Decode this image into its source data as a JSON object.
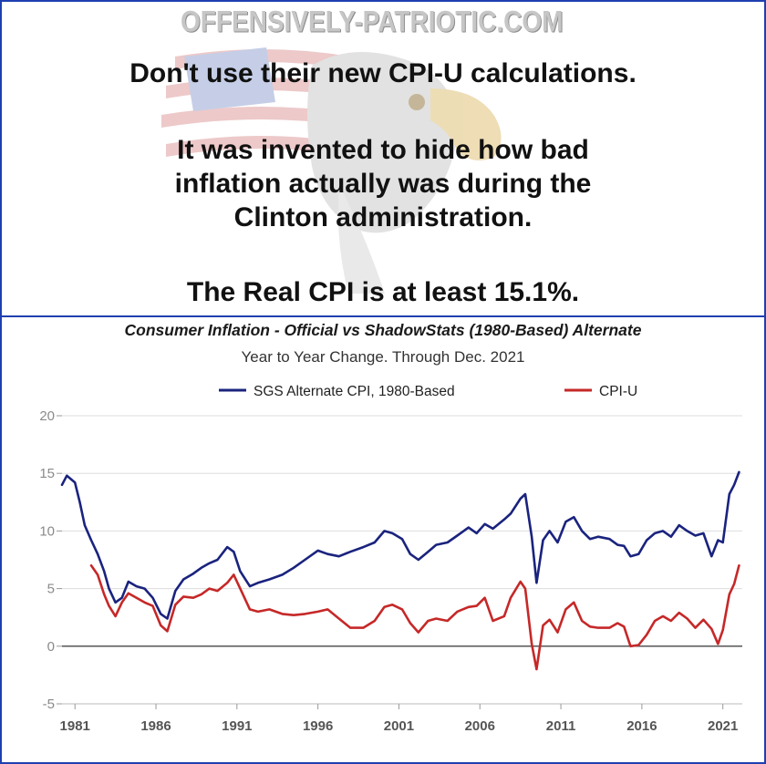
{
  "meme": {
    "watermark": "OFFENSIVELY-PATRIOTIC.COM",
    "caption_line_1": "Don't use their new CPI-U calculations.",
    "caption_line_2": "It was invented to hide how bad",
    "caption_line_3": "inflation actually was during the",
    "caption_line_4": "Clinton administration.",
    "caption_line_5": "The Real CPI is at least 15.1%."
  },
  "colors": {
    "frame": "#1f3fb0",
    "sgs_series": "#1a237e",
    "cpiu_series": "#c62828",
    "zero_line": "#555555",
    "grid": "#dddddd"
  },
  "chart_data": {
    "type": "line",
    "title": "Consumer Inflation - Official vs ShadowStats (1980-Based) Alternate",
    "subtitle": "Year to Year Change. Through Dec. 2021",
    "xlabel": "",
    "ylabel": "",
    "xlim": [
      1980.2,
      2022.2
    ],
    "ylim": [
      -5,
      20
    ],
    "yticks": [
      -5,
      0,
      5,
      10,
      15,
      20
    ],
    "xticks": [
      1981,
      1986,
      1991,
      1996,
      2001,
      2006,
      2011,
      2016,
      2021
    ],
    "grid": "horizontal",
    "legend_position": "top",
    "series": [
      {
        "name": "SGS Alternate CPI, 1980-Based",
        "x": [
          1980.2,
          1980.5,
          1981.0,
          1981.3,
          1981.6,
          1982.0,
          1982.4,
          1982.8,
          1983.1,
          1983.5,
          1983.9,
          1984.3,
          1984.8,
          1985.3,
          1985.8,
          1986.3,
          1986.7,
          1987.2,
          1987.7,
          1988.3,
          1988.8,
          1989.3,
          1989.8,
          1990.4,
          1990.8,
          1991.2,
          1991.8,
          1992.3,
          1993.0,
          1993.8,
          1994.5,
          1995.2,
          1996.0,
          1996.6,
          1997.3,
          1998.0,
          1998.8,
          1999.5,
          2000.1,
          2000.6,
          2001.2,
          2001.7,
          2002.2,
          2002.8,
          2003.3,
          2004.0,
          2004.6,
          2005.3,
          2005.8,
          2006.3,
          2006.8,
          2007.5,
          2007.9,
          2008.5,
          2008.8,
          2009.2,
          2009.5,
          2009.9,
          2010.3,
          2010.8,
          2011.3,
          2011.8,
          2012.3,
          2012.8,
          2013.3,
          2014.0,
          2014.5,
          2014.9,
          2015.3,
          2015.8,
          2016.3,
          2016.8,
          2017.3,
          2017.8,
          2018.3,
          2018.8,
          2019.3,
          2019.8,
          2020.3,
          2020.7,
          2021.0,
          2021.4,
          2021.7,
          2022.0
        ],
        "values": [
          14.0,
          14.8,
          14.2,
          12.5,
          10.5,
          9.2,
          8.0,
          6.5,
          5.0,
          3.8,
          4.2,
          5.6,
          5.2,
          5.0,
          4.2,
          2.8,
          2.4,
          4.8,
          5.8,
          6.3,
          6.8,
          7.2,
          7.5,
          8.6,
          8.2,
          6.5,
          5.2,
          5.5,
          5.8,
          6.2,
          6.8,
          7.5,
          8.3,
          8.0,
          7.8,
          8.2,
          8.6,
          9.0,
          10.0,
          9.8,
          9.3,
          8.0,
          7.5,
          8.2,
          8.8,
          9.0,
          9.6,
          10.3,
          9.8,
          10.6,
          10.2,
          11.0,
          11.5,
          12.8,
          13.2,
          9.5,
          5.5,
          9.2,
          10.0,
          9.0,
          10.8,
          11.2,
          10.0,
          9.3,
          9.5,
          9.3,
          8.8,
          8.7,
          7.8,
          8.0,
          9.2,
          9.8,
          10.0,
          9.5,
          10.5,
          10.0,
          9.6,
          9.8,
          7.8,
          9.2,
          9.0,
          13.2,
          14.0,
          15.1
        ]
      },
      {
        "name": "CPI-U",
        "x": [
          1982.0,
          1982.4,
          1982.8,
          1983.1,
          1983.5,
          1983.9,
          1984.3,
          1984.8,
          1985.3,
          1985.8,
          1986.3,
          1986.7,
          1987.2,
          1987.7,
          1988.3,
          1988.8,
          1989.3,
          1989.8,
          1990.4,
          1990.8,
          1991.2,
          1991.8,
          1992.3,
          1993.0,
          1993.8,
          1994.5,
          1995.2,
          1996.0,
          1996.6,
          1997.3,
          1998.0,
          1998.8,
          1999.5,
          2000.1,
          2000.6,
          2001.2,
          2001.7,
          2002.2,
          2002.8,
          2003.3,
          2004.0,
          2004.6,
          2005.3,
          2005.8,
          2006.3,
          2006.8,
          2007.5,
          2007.9,
          2008.5,
          2008.8,
          2009.2,
          2009.5,
          2009.9,
          2010.3,
          2010.8,
          2011.3,
          2011.8,
          2012.3,
          2012.8,
          2013.3,
          2014.0,
          2014.5,
          2014.9,
          2015.3,
          2015.8,
          2016.3,
          2016.8,
          2017.3,
          2017.8,
          2018.3,
          2018.8,
          2019.3,
          2019.8,
          2020.3,
          2020.7,
          2021.0,
          2021.4,
          2021.7,
          2022.0
        ],
        "values": [
          7.0,
          6.2,
          4.5,
          3.5,
          2.6,
          3.8,
          4.6,
          4.2,
          3.8,
          3.5,
          1.8,
          1.3,
          3.6,
          4.3,
          4.2,
          4.5,
          5.0,
          4.8,
          5.5,
          6.2,
          5.0,
          3.2,
          3.0,
          3.2,
          2.8,
          2.7,
          2.8,
          3.0,
          3.2,
          2.4,
          1.6,
          1.6,
          2.2,
          3.4,
          3.6,
          3.2,
          2.0,
          1.2,
          2.2,
          2.4,
          2.2,
          3.0,
          3.4,
          3.5,
          4.2,
          2.2,
          2.6,
          4.2,
          5.6,
          5.0,
          0.2,
          -2.0,
          1.8,
          2.3,
          1.2,
          3.2,
          3.8,
          2.2,
          1.7,
          1.6,
          1.6,
          2.0,
          1.7,
          0.0,
          0.1,
          1.0,
          2.2,
          2.6,
          2.2,
          2.9,
          2.4,
          1.6,
          2.3,
          1.5,
          0.2,
          1.4,
          4.5,
          5.4,
          7.0
        ]
      }
    ]
  }
}
